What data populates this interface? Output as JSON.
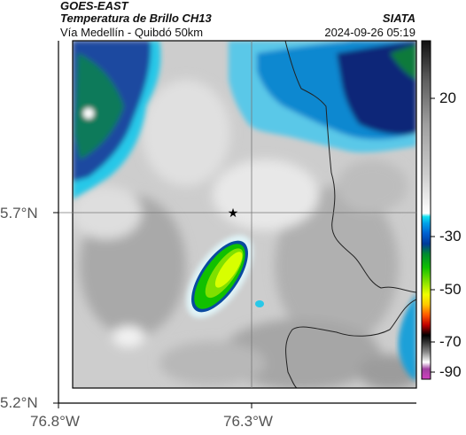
{
  "header": {
    "satellite": "GOES-EAST",
    "product": "Temperatura de Brillo CH13",
    "route": "Vía Medellín - Quibdó 50km",
    "brand": "SIATA",
    "timestamp": "2024-09-26 05:19"
  },
  "axes": {
    "y_ticks": [
      "5.7°N",
      "5.2°N"
    ],
    "x_ticks": [
      "76.8°W",
      "76.3°W"
    ]
  },
  "colorbar": {
    "labels": [
      "20",
      "-30",
      "-50",
      "-70",
      "-90"
    ]
  },
  "markers": {
    "reference_symbol": "★",
    "reference_color": "#000000"
  }
}
